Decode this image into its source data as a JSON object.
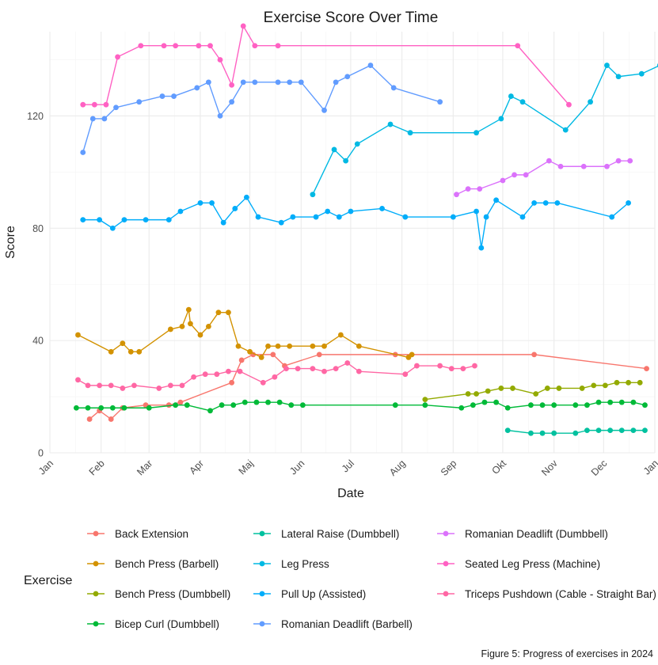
{
  "chart_data": {
    "type": "line",
    "title": "Exercise Score Over Time",
    "xlabel": "Date",
    "ylabel": "Score",
    "caption": "Figure 5: Progress of exercises in 2024",
    "legend_title": "Exercise",
    "legend_position": "bottom",
    "grid": true,
    "xlim": [
      "2024-01-01",
      "2025-01-01"
    ],
    "ylim": [
      0,
      150
    ],
    "x_ticks": [
      {
        "date": "2024-01-01",
        "label": "Jan"
      },
      {
        "date": "2024-02-01",
        "label": "Feb"
      },
      {
        "date": "2024-03-01",
        "label": "Mar"
      },
      {
        "date": "2024-04-01",
        "label": "Apr"
      },
      {
        "date": "2024-05-01",
        "label": "Maj"
      },
      {
        "date": "2024-06-01",
        "label": "Jun"
      },
      {
        "date": "2024-07-01",
        "label": "Jul"
      },
      {
        "date": "2024-08-01",
        "label": "Aug"
      },
      {
        "date": "2024-09-01",
        "label": "Sep"
      },
      {
        "date": "2024-10-01",
        "label": "Okt"
      },
      {
        "date": "2024-11-01",
        "label": "Nov"
      },
      {
        "date": "2024-12-01",
        "label": "Dec"
      },
      {
        "date": "2025-01-01",
        "label": "Jan"
      }
    ],
    "y_ticks": [
      0,
      40,
      80,
      120
    ],
    "y_minor": [
      20,
      60,
      100,
      140
    ],
    "series": [
      {
        "name": "Back Extension",
        "color": "#F8766D",
        "points": [
          [
            "2024-01-25",
            12
          ],
          [
            "2024-01-31",
            15
          ],
          [
            "2024-02-07",
            12
          ],
          [
            "2024-02-14",
            16
          ],
          [
            "2024-02-28",
            17
          ],
          [
            "2024-03-13",
            17
          ],
          [
            "2024-03-20",
            18
          ],
          [
            "2024-04-20",
            25
          ],
          [
            "2024-04-26",
            33
          ],
          [
            "2024-05-03",
            35
          ],
          [
            "2024-05-15",
            35
          ],
          [
            "2024-05-22",
            31
          ],
          [
            "2024-06-12",
            35
          ],
          [
            "2024-07-28",
            35
          ],
          [
            "2024-10-20",
            35
          ],
          [
            "2024-12-27",
            30
          ]
        ]
      },
      {
        "name": "Bench Press (Barbell)",
        "color": "#D39200",
        "points": [
          [
            "2024-01-18",
            42
          ],
          [
            "2024-02-07",
            36
          ],
          [
            "2024-02-14",
            39
          ],
          [
            "2024-02-19",
            36
          ],
          [
            "2024-02-24",
            36
          ],
          [
            "2024-03-14",
            44
          ],
          [
            "2024-03-21",
            45
          ],
          [
            "2024-03-25",
            51
          ],
          [
            "2024-03-26",
            46
          ],
          [
            "2024-04-01",
            42
          ],
          [
            "2024-04-06",
            45
          ],
          [
            "2024-04-12",
            50
          ],
          [
            "2024-04-18",
            50
          ],
          [
            "2024-04-24",
            38
          ],
          [
            "2024-05-01",
            36
          ],
          [
            "2024-05-08",
            34
          ],
          [
            "2024-05-12",
            38
          ],
          [
            "2024-05-18",
            38
          ],
          [
            "2024-05-25",
            38
          ],
          [
            "2024-06-08",
            38
          ],
          [
            "2024-06-15",
            38
          ],
          [
            "2024-06-25",
            42
          ],
          [
            "2024-07-06",
            38
          ],
          [
            "2024-08-05",
            34
          ],
          [
            "2024-08-07",
            35
          ]
        ]
      },
      {
        "name": "Bench Press (Dumbbell)",
        "color": "#93AA00",
        "points": [
          [
            "2024-08-15",
            19
          ],
          [
            "2024-09-10",
            21
          ],
          [
            "2024-09-15",
            21
          ],
          [
            "2024-09-22",
            22
          ],
          [
            "2024-09-30",
            23
          ],
          [
            "2024-10-07",
            23
          ],
          [
            "2024-10-21",
            21
          ],
          [
            "2024-10-28",
            23
          ],
          [
            "2024-11-04",
            23
          ],
          [
            "2024-11-18",
            23
          ],
          [
            "2024-11-25",
            24
          ],
          [
            "2024-12-02",
            24
          ],
          [
            "2024-12-09",
            25
          ],
          [
            "2024-12-16",
            25
          ],
          [
            "2024-12-23",
            25
          ]
        ]
      },
      {
        "name": "Bicep Curl (Dumbbell)",
        "color": "#00BA38",
        "points": [
          [
            "2024-01-17",
            16
          ],
          [
            "2024-01-24",
            16
          ],
          [
            "2024-02-01",
            16
          ],
          [
            "2024-02-08",
            16
          ],
          [
            "2024-02-15",
            16
          ],
          [
            "2024-03-01",
            16
          ],
          [
            "2024-03-17",
            17
          ],
          [
            "2024-03-24",
            17
          ],
          [
            "2024-04-07",
            15
          ],
          [
            "2024-04-14",
            17
          ],
          [
            "2024-04-21",
            17
          ],
          [
            "2024-04-28",
            18
          ],
          [
            "2024-05-05",
            18
          ],
          [
            "2024-05-12",
            18
          ],
          [
            "2024-05-19",
            18
          ],
          [
            "2024-05-26",
            17
          ],
          [
            "2024-06-02",
            17
          ],
          [
            "2024-07-28",
            17
          ],
          [
            "2024-08-15",
            17
          ],
          [
            "2024-09-06",
            16
          ],
          [
            "2024-09-13",
            17
          ],
          [
            "2024-09-20",
            18
          ],
          [
            "2024-09-27",
            18
          ],
          [
            "2024-10-04",
            16
          ],
          [
            "2024-10-18",
            17
          ],
          [
            "2024-10-25",
            17
          ],
          [
            "2024-11-01",
            17
          ],
          [
            "2024-11-14",
            17
          ],
          [
            "2024-11-21",
            17
          ],
          [
            "2024-11-28",
            18
          ],
          [
            "2024-12-05",
            18
          ],
          [
            "2024-12-12",
            18
          ],
          [
            "2024-12-19",
            18
          ],
          [
            "2024-12-26",
            17
          ]
        ]
      },
      {
        "name": "Lateral Raise (Dumbbell)",
        "color": "#00C19F",
        "points": [
          [
            "2024-10-04",
            8
          ],
          [
            "2024-10-18",
            7
          ],
          [
            "2024-10-25",
            7
          ],
          [
            "2024-11-01",
            7
          ],
          [
            "2024-11-14",
            7
          ],
          [
            "2024-11-21",
            8
          ],
          [
            "2024-11-28",
            8
          ],
          [
            "2024-12-05",
            8
          ],
          [
            "2024-12-12",
            8
          ],
          [
            "2024-12-19",
            8
          ],
          [
            "2024-12-26",
            8
          ]
        ]
      },
      {
        "name": "Leg Press",
        "color": "#00B9E3",
        "points": [
          [
            "2024-06-08",
            92
          ],
          [
            "2024-06-21",
            108
          ],
          [
            "2024-06-28",
            104
          ],
          [
            "2024-07-05",
            110
          ],
          [
            "2024-07-25",
            117
          ],
          [
            "2024-08-06",
            114
          ],
          [
            "2024-09-15",
            114
          ],
          [
            "2024-09-30",
            119
          ],
          [
            "2024-10-06",
            127
          ],
          [
            "2024-10-13",
            125
          ],
          [
            "2024-11-08",
            115
          ],
          [
            "2024-11-23",
            125
          ],
          [
            "2024-12-03",
            138
          ],
          [
            "2024-12-10",
            134
          ],
          [
            "2024-12-24",
            135
          ],
          [
            "2025-01-04",
            138
          ],
          [
            "2025-01-11",
            137
          ],
          [
            "2025-01-14",
            135
          ]
        ]
      },
      {
        "name": "Pull Up (Assisted)",
        "color": "#00ADFA",
        "points": [
          [
            "2024-01-21",
            83
          ],
          [
            "2024-01-31",
            83
          ],
          [
            "2024-02-08",
            80
          ],
          [
            "2024-02-15",
            83
          ],
          [
            "2024-02-28",
            83
          ],
          [
            "2024-03-13",
            83
          ],
          [
            "2024-03-20",
            86
          ],
          [
            "2024-04-01",
            89
          ],
          [
            "2024-04-08",
            89
          ],
          [
            "2024-04-15",
            82
          ],
          [
            "2024-04-22",
            87
          ],
          [
            "2024-04-29",
            91
          ],
          [
            "2024-05-06",
            84
          ],
          [
            "2024-05-20",
            82
          ],
          [
            "2024-05-27",
            84
          ],
          [
            "2024-06-10",
            84
          ],
          [
            "2024-06-17",
            86
          ],
          [
            "2024-06-24",
            84
          ],
          [
            "2024-07-01",
            86
          ],
          [
            "2024-07-20",
            87
          ],
          [
            "2024-08-03",
            84
          ],
          [
            "2024-09-01",
            84
          ],
          [
            "2024-09-15",
            86
          ],
          [
            "2024-09-18",
            73
          ],
          [
            "2024-09-21",
            84
          ],
          [
            "2024-09-27",
            90
          ],
          [
            "2024-10-13",
            84
          ],
          [
            "2024-10-20",
            89
          ],
          [
            "2024-10-27",
            89
          ],
          [
            "2024-11-03",
            89
          ],
          [
            "2024-12-06",
            84
          ],
          [
            "2024-12-16",
            89
          ]
        ]
      },
      {
        "name": "Romanian Deadlift (Barbell)",
        "color": "#619CFF",
        "points": [
          [
            "2024-01-21",
            107
          ],
          [
            "2024-01-27",
            119
          ],
          [
            "2024-02-03",
            119
          ],
          [
            "2024-02-10",
            123
          ],
          [
            "2024-02-24",
            125
          ],
          [
            "2024-03-09",
            127
          ],
          [
            "2024-03-16",
            127
          ],
          [
            "2024-03-30",
            130
          ],
          [
            "2024-04-06",
            132
          ],
          [
            "2024-04-13",
            120
          ],
          [
            "2024-04-20",
            125
          ],
          [
            "2024-04-27",
            132
          ],
          [
            "2024-05-04",
            132
          ],
          [
            "2024-05-18",
            132
          ],
          [
            "2024-05-25",
            132
          ],
          [
            "2024-06-01",
            132
          ],
          [
            "2024-06-15",
            122
          ],
          [
            "2024-06-22",
            132
          ],
          [
            "2024-06-29",
            134
          ],
          [
            "2024-07-13",
            138
          ],
          [
            "2024-07-27",
            130
          ],
          [
            "2024-08-24",
            125
          ]
        ]
      },
      {
        "name": "Romanian Deadlift (Dumbbell)",
        "color": "#DB72FB",
        "points": [
          [
            "2024-09-03",
            92
          ],
          [
            "2024-09-10",
            94
          ],
          [
            "2024-09-17",
            94
          ],
          [
            "2024-10-01",
            97
          ],
          [
            "2024-10-08",
            99
          ],
          [
            "2024-10-15",
            99
          ],
          [
            "2024-10-29",
            104
          ],
          [
            "2024-11-05",
            102
          ],
          [
            "2024-11-19",
            102
          ],
          [
            "2024-12-03",
            102
          ],
          [
            "2024-12-10",
            104
          ],
          [
            "2024-12-17",
            104
          ]
        ]
      },
      {
        "name": "Seated Leg Press (Machine)",
        "color": "#FF61C3",
        "points": [
          [
            "2024-01-21",
            124
          ],
          [
            "2024-01-28",
            124
          ],
          [
            "2024-02-04",
            124
          ],
          [
            "2024-02-11",
            141
          ],
          [
            "2024-02-25",
            145
          ],
          [
            "2024-03-10",
            145
          ],
          [
            "2024-03-17",
            145
          ],
          [
            "2024-03-31",
            145
          ],
          [
            "2024-04-07",
            145
          ],
          [
            "2024-04-13",
            140
          ],
          [
            "2024-04-20",
            131
          ],
          [
            "2024-04-27",
            152
          ],
          [
            "2024-05-04",
            145
          ],
          [
            "2024-05-18",
            145
          ],
          [
            "2024-10-10",
            145
          ],
          [
            "2024-11-10",
            124
          ]
        ]
      },
      {
        "name": "Triceps Pushdown (Cable - Straight Bar)",
        "color": "#FF67A4",
        "points": [
          [
            "2024-01-18",
            26
          ],
          [
            "2024-01-24",
            24
          ],
          [
            "2024-01-31",
            24
          ],
          [
            "2024-02-07",
            24
          ],
          [
            "2024-02-14",
            23
          ],
          [
            "2024-02-21",
            24
          ],
          [
            "2024-03-07",
            23
          ],
          [
            "2024-03-14",
            24
          ],
          [
            "2024-03-21",
            24
          ],
          [
            "2024-03-28",
            27
          ],
          [
            "2024-04-04",
            28
          ],
          [
            "2024-04-11",
            28
          ],
          [
            "2024-04-18",
            29
          ],
          [
            "2024-04-25",
            29
          ],
          [
            "2024-05-09",
            25
          ],
          [
            "2024-05-16",
            27
          ],
          [
            "2024-05-23",
            30
          ],
          [
            "2024-05-30",
            30
          ],
          [
            "2024-06-08",
            30
          ],
          [
            "2024-06-15",
            29
          ],
          [
            "2024-06-22",
            30
          ],
          [
            "2024-06-29",
            32
          ],
          [
            "2024-07-06",
            29
          ],
          [
            "2024-08-03",
            28
          ],
          [
            "2024-08-10",
            31
          ],
          [
            "2024-08-24",
            31
          ],
          [
            "2024-08-31",
            30
          ],
          [
            "2024-09-07",
            30
          ],
          [
            "2024-09-14",
            31
          ]
        ]
      }
    ]
  }
}
